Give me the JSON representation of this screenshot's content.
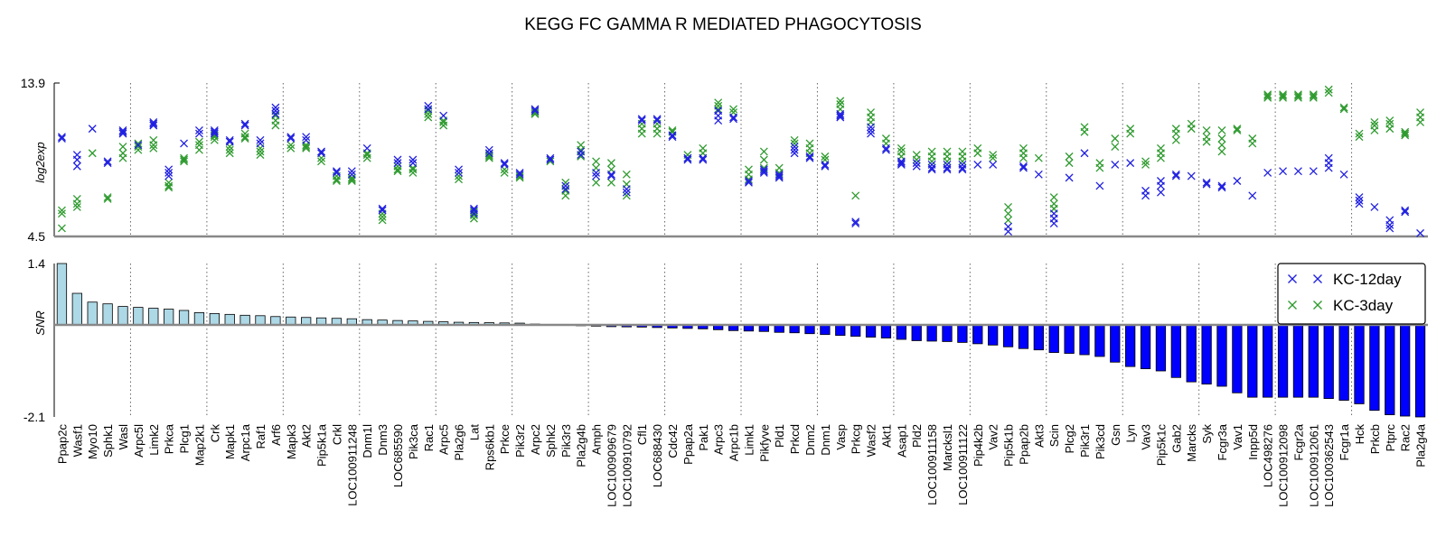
{
  "chart_data": {
    "type": "scatter",
    "title": "KEGG FC GAMMA R MEDIATED PHAGOCYTOSIS",
    "top_panel": {
      "ylabel": "log2exp",
      "ylim": [
        4.5,
        13.9
      ],
      "ytick_labels": [
        "13.9",
        "4.5"
      ]
    },
    "bottom_panel": {
      "type": "bar",
      "ylabel": "SNR",
      "ylim": [
        -2.1,
        1.4
      ],
      "ytick_labels": [
        "1.4",
        "-2.1"
      ]
    },
    "legend": {
      "position": "top-right",
      "entries": [
        {
          "label": "KC-12day",
          "color": "#1f1fe0"
        },
        {
          "label": "KC-3day",
          "color": "#2e9a2e"
        }
      ]
    },
    "colors": {
      "positive_bar": "#add8e6",
      "negative_bar": "#0000ff",
      "kc12": "#1f1fe0",
      "kc3": "#2e9a2e"
    },
    "genes": [
      {
        "name": "Ppap2c",
        "snr": 1.4,
        "kc12": [
          10.6,
          10.5
        ],
        "kc3": [
          5.0,
          6.1,
          5.9
        ]
      },
      {
        "name": "Wasf1",
        "snr": 0.72,
        "kc12": [
          8.8,
          9.2,
          9.5
        ],
        "kc3": [
          6.3,
          6.8,
          6.5
        ]
      },
      {
        "name": "Myo10",
        "snr": 0.52,
        "kc12": [
          11.1
        ],
        "kc3": [
          9.6
        ]
      },
      {
        "name": "Sphk1",
        "snr": 0.48,
        "kc12": [
          9.0,
          9.1
        ],
        "kc3": [
          6.8,
          6.9
        ]
      },
      {
        "name": "Wasl",
        "snr": 0.42,
        "kc12": [
          10.8,
          11.0,
          10.9
        ],
        "kc3": [
          9.3,
          9.6,
          10.0
        ]
      },
      {
        "name": "Arpc5l",
        "snr": 0.4,
        "kc12": [
          10.1
        ],
        "kc3": [
          9.8,
          10.0,
          10.2
        ]
      },
      {
        "name": "Limk2",
        "snr": 0.38,
        "kc12": [
          11.4,
          11.5,
          11.3
        ],
        "kc3": [
          9.9,
          10.1,
          10.4
        ]
      },
      {
        "name": "Prkca",
        "snr": 0.36,
        "kc12": [
          8.6,
          8.4,
          8.2
        ],
        "kc3": [
          7.8,
          7.5,
          7.6
        ]
      },
      {
        "name": "Plcg1",
        "snr": 0.33,
        "kc12": [
          10.2
        ],
        "kc3": [
          9.3,
          9.1,
          9.2
        ]
      },
      {
        "name": "Map2k1",
        "snr": 0.28,
        "kc12": [
          11.0,
          10.8
        ],
        "kc3": [
          10.3,
          10.1,
          9.8
        ]
      },
      {
        "name": "Crk",
        "snr": 0.26,
        "kc12": [
          11.0,
          10.9,
          10.8
        ],
        "kc3": [
          10.4,
          10.6,
          10.7
        ]
      },
      {
        "name": "Mapk1",
        "snr": 0.24,
        "kc12": [
          10.4,
          10.3
        ],
        "kc3": [
          10.0,
          9.8,
          9.6
        ]
      },
      {
        "name": "Arpc1a",
        "snr": 0.22,
        "kc12": [
          11.4,
          11.3
        ],
        "kc3": [
          10.5,
          10.6,
          10.8
        ]
      },
      {
        "name": "Raf1",
        "snr": 0.21,
        "kc12": [
          10.4,
          10.2
        ],
        "kc3": [
          9.7,
          9.5,
          9.9
        ]
      },
      {
        "name": "Arf6",
        "snr": 0.19,
        "kc12": [
          12.4,
          12.2,
          12.0
        ],
        "kc3": [
          11.3,
          11.6,
          11.9
        ]
      },
      {
        "name": "Mapk3",
        "snr": 0.18,
        "kc12": [
          10.6,
          10.5
        ],
        "kc3": [
          9.9,
          10.1
        ]
      },
      {
        "name": "Akt2",
        "snr": 0.17,
        "kc12": [
          10.6,
          10.4
        ],
        "kc3": [
          9.9,
          10.1,
          10.0
        ]
      },
      {
        "name": "Pip5k1a",
        "snr": 0.16,
        "kc12": [
          9.7,
          9.6
        ],
        "kc3": [
          9.3,
          9.1
        ]
      },
      {
        "name": "Crkl",
        "snr": 0.15,
        "kc12": [
          8.4,
          8.5
        ],
        "kc3": [
          7.9,
          8.2,
          8.0
        ]
      },
      {
        "name": "LOC100911248",
        "snr": 0.14,
        "kc12": [
          8.5,
          8.3
        ],
        "kc3": [
          7.9,
          8.1,
          8.0
        ]
      },
      {
        "name": "Dnm1l",
        "snr": 0.12,
        "kc12": [
          9.9
        ],
        "kc3": [
          9.3,
          9.5,
          9.6
        ]
      },
      {
        "name": "Dnm3",
        "snr": 0.11,
        "kc12": [
          6.2,
          6.1
        ],
        "kc3": [
          5.5,
          5.7,
          5.9
        ]
      },
      {
        "name": "LOC685590",
        "snr": 0.1,
        "kc12": [
          9.2,
          9.0
        ],
        "kc3": [
          8.6,
          8.8,
          8.5
        ]
      },
      {
        "name": "Pik3ca",
        "snr": 0.09,
        "kc12": [
          9.2,
          9.0
        ],
        "kc3": [
          8.4,
          8.7,
          8.6
        ]
      },
      {
        "name": "Rac1",
        "snr": 0.08,
        "kc12": [
          12.5,
          12.3
        ],
        "kc3": [
          11.8,
          12.0,
          12.2
        ]
      },
      {
        "name": "Arpc5",
        "snr": 0.07,
        "kc12": [
          11.9
        ],
        "kc3": [
          11.3,
          11.5,
          11.6
        ]
      },
      {
        "name": "Pla2g6",
        "snr": 0.06,
        "kc12": [
          8.6,
          8.4
        ],
        "kc3": [
          8.0,
          8.2
        ]
      },
      {
        "name": "Lat",
        "snr": 0.055,
        "kc12": [
          6.2,
          6.1,
          5.9
        ],
        "kc3": [
          5.6,
          5.8,
          6.0
        ]
      },
      {
        "name": "Rps6kb1",
        "snr": 0.05,
        "kc12": [
          9.8,
          9.6
        ],
        "kc3": [
          9.3,
          9.5,
          9.4
        ]
      },
      {
        "name": "Prkce",
        "snr": 0.045,
        "kc12": [
          9.0,
          8.9
        ],
        "kc3": [
          8.6,
          8.4
        ]
      },
      {
        "name": "Pik3r2",
        "snr": 0.04,
        "kc12": [
          8.4,
          8.3
        ],
        "kc3": [
          8.2,
          8.1
        ]
      },
      {
        "name": "Arpc2",
        "snr": 0.02,
        "kc12": [
          12.3,
          12.2
        ],
        "kc3": [
          12.0,
          12.1
        ]
      },
      {
        "name": "Sphk2",
        "snr": 0.01,
        "kc12": [
          9.3,
          9.2
        ],
        "kc3": [
          9.1
        ]
      },
      {
        "name": "Pik3r3",
        "snr": -0.01,
        "kc12": [
          7.6,
          7.4
        ],
        "kc3": [
          7.0,
          7.3,
          7.8
        ]
      },
      {
        "name": "Pla2g4b",
        "snr": -0.02,
        "kc12": [
          9.7,
          9.5
        ],
        "kc3": [
          9.4,
          9.8,
          10.1
        ]
      },
      {
        "name": "Amph",
        "snr": -0.03,
        "kc12": [
          8.4,
          8.2
        ],
        "kc3": [
          7.8,
          8.7,
          9.1
        ]
      },
      {
        "name": "LOC100909679",
        "snr": -0.04,
        "kc12": [
          8.3,
          8.2
        ],
        "kc3": [
          7.8,
          8.6,
          9.0
        ]
      },
      {
        "name": "LOC100910792",
        "snr": -0.045,
        "kc12": [
          7.4,
          7.2
        ],
        "kc3": [
          7.0,
          7.7,
          8.3
        ]
      },
      {
        "name": "Cfl1",
        "snr": -0.05,
        "kc12": [
          11.7,
          11.6
        ],
        "kc3": [
          10.8,
          11.1,
          11.4
        ]
      },
      {
        "name": "LOC688430",
        "snr": -0.06,
        "kc12": [
          11.7,
          11.6
        ],
        "kc3": [
          10.8,
          11.1,
          11.4
        ]
      },
      {
        "name": "Cdc42",
        "snr": -0.07,
        "kc12": [
          10.7,
          10.6
        ],
        "kc3": [
          10.9,
          11.0
        ]
      },
      {
        "name": "Ppap2a",
        "snr": -0.08,
        "kc12": [
          9.3,
          9.2
        ],
        "kc3": [
          9.3,
          9.5
        ]
      },
      {
        "name": "Pak1",
        "snr": -0.09,
        "kc12": [
          9.3,
          9.2
        ],
        "kc3": [
          9.6,
          9.9
        ]
      },
      {
        "name": "Arpc3",
        "snr": -0.11,
        "kc12": [
          12.2,
          11.9,
          11.6
        ],
        "kc3": [
          12.3,
          12.5,
          12.7
        ]
      },
      {
        "name": "Arpc1b",
        "snr": -0.13,
        "kc12": [
          11.8,
          11.7
        ],
        "kc3": [
          12.1,
          12.3
        ]
      },
      {
        "name": "Limk1",
        "snr": -0.14,
        "kc12": [
          7.9,
          7.8
        ],
        "kc3": [
          8.0,
          8.3,
          8.6
        ]
      },
      {
        "name": "Pikfyve",
        "snr": -0.15,
        "kc12": [
          8.5,
          8.4,
          8.6
        ],
        "kc3": [
          8.7,
          9.2,
          9.7
        ]
      },
      {
        "name": "Pld1",
        "snr": -0.17,
        "kc12": [
          8.2,
          8.1,
          8.3
        ],
        "kc3": [
          8.4,
          8.7
        ]
      },
      {
        "name": "Prkcd",
        "snr": -0.18,
        "kc12": [
          9.6,
          9.8,
          10.0
        ],
        "kc3": [
          10.2,
          10.4
        ]
      },
      {
        "name": "Dnm2",
        "snr": -0.2,
        "kc12": [
          9.4,
          9.3
        ],
        "kc3": [
          9.6,
          9.9,
          10.2
        ]
      },
      {
        "name": "Dnm1",
        "snr": -0.22,
        "kc12": [
          8.9,
          8.8
        ],
        "kc3": [
          9.2,
          9.4
        ]
      },
      {
        "name": "Vasp",
        "snr": -0.24,
        "kc12": [
          11.9,
          11.8,
          12.0
        ],
        "kc3": [
          12.3,
          12.6,
          12.8
        ]
      },
      {
        "name": "Prkcg",
        "snr": -0.26,
        "kc12": [
          5.4,
          5.3
        ],
        "kc3": [
          7.0
        ]
      },
      {
        "name": "Wasf2",
        "snr": -0.28,
        "kc12": [
          10.8,
          11.0,
          11.2
        ],
        "kc3": [
          11.5,
          11.8,
          12.1
        ]
      },
      {
        "name": "Akt1",
        "snr": -0.3,
        "kc12": [
          9.9,
          9.8
        ],
        "kc3": [
          10.2,
          10.5
        ]
      },
      {
        "name": "Asap1",
        "snr": -0.33,
        "kc12": [
          9.0,
          8.9,
          9.1
        ],
        "kc3": [
          9.4,
          9.7,
          9.9
        ]
      },
      {
        "name": "Pld2",
        "snr": -0.36,
        "kc12": [
          9.0,
          8.8
        ],
        "kc3": [
          9.2,
          9.5
        ]
      },
      {
        "name": "LOC100911158",
        "snr": -0.37,
        "kc12": [
          8.9,
          8.7,
          8.6
        ],
        "kc3": [
          9.1,
          9.4,
          9.7
        ]
      },
      {
        "name": "Marcksl1",
        "snr": -0.38,
        "kc12": [
          8.9,
          8.7,
          8.6
        ],
        "kc3": [
          9.1,
          9.4,
          9.7
        ]
      },
      {
        "name": "LOC100911122",
        "snr": -0.4,
        "kc12": [
          8.9,
          8.7,
          8.6
        ],
        "kc3": [
          9.1,
          9.4,
          9.7
        ]
      },
      {
        "name": "Pip4k2b",
        "snr": -0.43,
        "kc12": [
          8.9
        ],
        "kc3": [
          9.6,
          9.9
        ]
      },
      {
        "name": "Vav2",
        "snr": -0.46,
        "kc12": [
          8.9
        ],
        "kc3": [
          9.3,
          9.5
        ]
      },
      {
        "name": "Pip5k1b",
        "snr": -0.5,
        "kc12": [
          4.8,
          5.1
        ],
        "kc3": [
          5.5,
          5.9,
          6.3
        ]
      },
      {
        "name": "Ppap2b",
        "snr": -0.54,
        "kc12": [
          8.8,
          8.7
        ],
        "kc3": [
          9.3,
          9.6,
          9.9
        ]
      },
      {
        "name": "Akt3",
        "snr": -0.57,
        "kc12": [
          8.3
        ],
        "kc3": [
          9.3
        ]
      },
      {
        "name": "Scin",
        "snr": -0.63,
        "kc12": [
          5.3,
          5.6,
          5.9
        ],
        "kc3": [
          6.2,
          6.5,
          6.9
        ]
      },
      {
        "name": "Plcg2",
        "snr": -0.65,
        "kc12": [
          8.1
        ],
        "kc3": [
          9.0,
          9.4
        ]
      },
      {
        "name": "Pik3r1",
        "snr": -0.68,
        "kc12": [
          9.6
        ],
        "kc3": [
          10.9,
          11.2
        ]
      },
      {
        "name": "Pik3cd",
        "snr": -0.72,
        "kc12": [
          7.6
        ],
        "kc3": [
          8.7,
          9.0
        ]
      },
      {
        "name": "Gsn",
        "snr": -0.85,
        "kc12": [
          8.9
        ],
        "kc3": [
          10.0,
          10.5
        ]
      },
      {
        "name": "Lyn",
        "snr": -0.95,
        "kc12": [
          9.0
        ],
        "kc3": [
          10.8,
          11.1
        ]
      },
      {
        "name": "Vav3",
        "snr": -1.0,
        "kc12": [
          7.3,
          7.0
        ],
        "kc3": [
          8.9,
          9.1
        ]
      },
      {
        "name": "Pip5k1c",
        "snr": -1.05,
        "kc12": [
          7.2,
          7.6,
          7.9
        ],
        "kc3": [
          9.3,
          9.6,
          9.9
        ]
      },
      {
        "name": "Gab2",
        "snr": -1.2,
        "kc12": [
          8.3,
          8.2
        ],
        "kc3": [
          10.4,
          10.8,
          11.1
        ]
      },
      {
        "name": "Marcks",
        "snr": -1.3,
        "kc12": [
          8.2
        ],
        "kc3": [
          11.1,
          11.4
        ]
      },
      {
        "name": "Syk",
        "snr": -1.35,
        "kc12": [
          7.8,
          7.7
        ],
        "kc3": [
          10.3,
          10.6,
          11.0
        ]
      },
      {
        "name": "Fcgr3a",
        "snr": -1.4,
        "kc12": [
          7.6,
          7.5
        ],
        "kc3": [
          9.7,
          10.1,
          10.5,
          11.0
        ]
      },
      {
        "name": "Vav1",
        "snr": -1.55,
        "kc12": [
          7.9
        ],
        "kc3": [
          11.0,
          11.1
        ]
      },
      {
        "name": "Inpp5d",
        "snr": -1.65,
        "kc12": [
          7.0
        ],
        "kc3": [
          10.2,
          10.5
        ]
      },
      {
        "name": "LOC498276",
        "snr": -1.65,
        "kc12": [
          8.4
        ],
        "kc3": [
          13.1,
          13.2,
          13.0
        ]
      },
      {
        "name": "LOC100912098",
        "snr": -1.65,
        "kc12": [
          8.5
        ],
        "kc3": [
          13.0,
          13.2,
          13.1
        ]
      },
      {
        "name": "Fcgr2a",
        "snr": -1.65,
        "kc12": [
          8.5
        ],
        "kc3": [
          13.0,
          13.2,
          13.1
        ]
      },
      {
        "name": "LOC100912061",
        "snr": -1.65,
        "kc12": [
          8.5
        ],
        "kc3": [
          13.0,
          13.2,
          13.1
        ]
      },
      {
        "name": "LOC100362543",
        "snr": -1.68,
        "kc12": [
          8.7,
          9.0,
          9.3
        ],
        "kc3": [
          13.3,
          13.5
        ]
      },
      {
        "name": "Fcgr1a",
        "snr": -1.72,
        "kc12": [
          8.3
        ],
        "kc3": [
          12.3,
          12.4
        ]
      },
      {
        "name": "Hck",
        "snr": -1.8,
        "kc12": [
          6.7,
          6.5,
          6.9
        ],
        "kc3": [
          10.6,
          10.8
        ]
      },
      {
        "name": "Prkcb",
        "snr": -1.95,
        "kc12": [
          6.3
        ],
        "kc3": [
          11.0,
          11.3,
          11.5
        ]
      },
      {
        "name": "Ptprc",
        "snr": -2.05,
        "kc12": [
          5.0,
          5.2,
          5.5
        ],
        "kc3": [
          11.1,
          11.4,
          11.6
        ]
      },
      {
        "name": "Rac2",
        "snr": -2.08,
        "kc12": [
          6.0,
          6.1
        ],
        "kc3": [
          10.7,
          10.8,
          10.9
        ]
      },
      {
        "name": "Pla2g4a",
        "snr": -2.1,
        "kc12": [
          4.7
        ],
        "kc3": [
          11.5,
          11.8,
          12.1
        ]
      }
    ],
    "group_separators_after_index": [
      4,
      9,
      14,
      19,
      24,
      29,
      34,
      39,
      44,
      49,
      54,
      59,
      64,
      69,
      74,
      79,
      84
    ]
  }
}
